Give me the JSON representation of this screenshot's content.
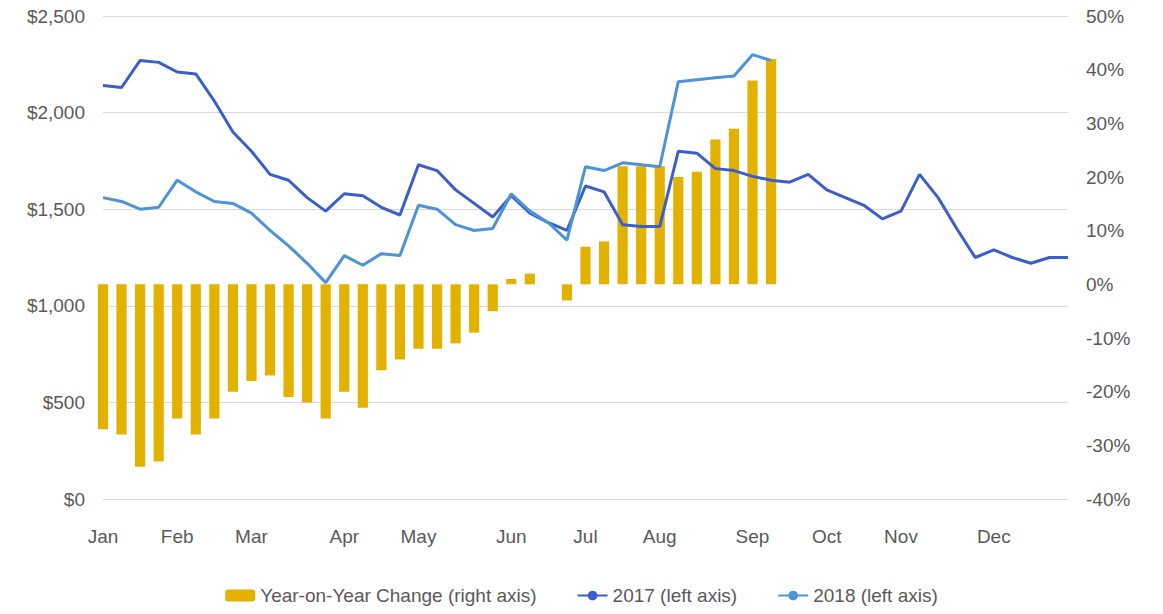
{
  "chart_data": {
    "type": "line",
    "categories": [
      "Jan",
      null,
      null,
      null,
      "Feb",
      null,
      null,
      null,
      "Mar",
      null,
      null,
      null,
      null,
      "Apr",
      null,
      null,
      null,
      "May",
      null,
      null,
      null,
      null,
      "Jun",
      null,
      null,
      null,
      "Jul",
      null,
      null,
      null,
      "Aug",
      null,
      null,
      null,
      null,
      "Sep",
      null,
      null,
      null,
      "Oct",
      null,
      null,
      null,
      "Nov",
      null,
      null,
      null,
      null,
      "Dec",
      null,
      null,
      null,
      null
    ],
    "series": [
      {
        "name": "Year-on-Year Change (right axis)",
        "type": "bar",
        "axis": "y2",
        "color": "#e3b100",
        "values": [
          -27,
          -28,
          -34,
          -33,
          -25,
          -28,
          -25,
          -20,
          -18,
          -17,
          -21,
          -22,
          -25,
          -20,
          -23,
          -16,
          -14,
          -12,
          -12,
          -11,
          -9,
          -5,
          1,
          2,
          0,
          -3,
          7,
          8,
          22,
          22,
          22,
          20,
          21,
          27,
          29,
          38,
          42,
          null,
          null,
          null,
          null,
          null,
          null,
          null,
          null,
          null,
          null,
          null,
          null,
          null,
          null,
          null,
          null
        ]
      },
      {
        "name": "2017 (left axis)",
        "type": "line",
        "color": "#3a5fcd",
        "values": [
          2140,
          2130,
          2270,
          2260,
          2210,
          2200,
          2060,
          1900,
          1800,
          1680,
          1650,
          1560,
          1490,
          1580,
          1570,
          1510,
          1470,
          1730,
          1700,
          1600,
          1530,
          1460,
          1570,
          1480,
          1430,
          1390,
          1620,
          1590,
          1420,
          1410,
          1410,
          1800,
          1790,
          1710,
          1700,
          1670,
          1650,
          1640,
          1680,
          1600,
          1560,
          1520,
          1450,
          1490,
          1680,
          1560,
          1400,
          1250,
          1290,
          1250,
          1220,
          1250,
          1250
        ]
      },
      {
        "name": "2018 (left axis)",
        "type": "line",
        "color": "#4e92d8",
        "values": [
          1560,
          1540,
          1500,
          1510,
          1650,
          1590,
          1540,
          1530,
          1480,
          1390,
          1310,
          1220,
          1120,
          1260,
          1210,
          1270,
          1260,
          1520,
          1500,
          1420,
          1390,
          1400,
          1580,
          1490,
          1430,
          1340,
          1720,
          1700,
          1740,
          1730,
          1720,
          2160,
          2170,
          2180,
          2190,
          2300,
          2270,
          null,
          null,
          null,
          null,
          null,
          null,
          null,
          null,
          null,
          null,
          null,
          null,
          null,
          null,
          null,
          null
        ]
      }
    ],
    "ylim": [
      0,
      2500
    ],
    "yticks": [
      {
        "value": 0,
        "label": "$0"
      },
      {
        "value": 500,
        "label": "$500"
      },
      {
        "value": 1000,
        "label": "$1,000"
      },
      {
        "value": 1500,
        "label": "$1,500"
      },
      {
        "value": 2000,
        "label": "$2,000"
      },
      {
        "value": 2500,
        "label": "$2,500"
      }
    ],
    "y2lim": [
      -40,
      50
    ],
    "y2ticks": [
      {
        "value": -40,
        "label": "-40%"
      },
      {
        "value": -30,
        "label": "-30%"
      },
      {
        "value": -20,
        "label": "-20%"
      },
      {
        "value": -10,
        "label": "-10%"
      },
      {
        "value": 0,
        "label": "0%"
      },
      {
        "value": 10,
        "label": "10%"
      },
      {
        "value": 20,
        "label": "20%"
      },
      {
        "value": 30,
        "label": "30%"
      },
      {
        "value": 40,
        "label": "40%"
      },
      {
        "value": 50,
        "label": "50%"
      }
    ],
    "grid": true,
    "legend": "bottom"
  }
}
